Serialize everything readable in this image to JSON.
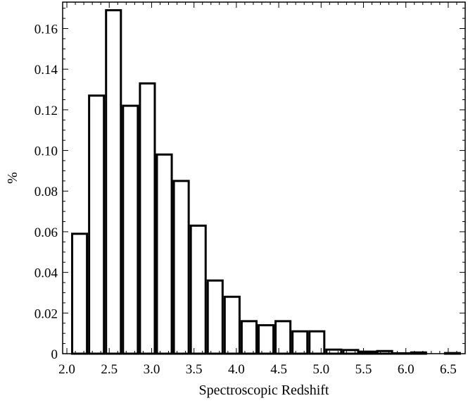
{
  "chart_data": {
    "type": "bar",
    "title": "",
    "xlabel": "Spectroscopic Redshift",
    "ylabel": "%",
    "xlim": [
      1.95,
      6.7
    ],
    "ylim": [
      0,
      0.173
    ],
    "x_ticks": [
      "2.0",
      "2.5",
      "3.0",
      "3.5",
      "4.0",
      "4.5",
      "5.0",
      "5.5",
      "6.0",
      "6.5"
    ],
    "y_ticks": [
      "0",
      "0.02",
      "0.04",
      "0.06",
      "0.08",
      "0.10",
      "0.12",
      "0.14",
      "0.16"
    ],
    "bin_width": 0.2,
    "grid": false,
    "legend": "none",
    "bar_fill": "#ffffff",
    "bar_stroke": "#000000",
    "bars": [
      {
        "x0": 2.05,
        "value": 0.059
      },
      {
        "x0": 2.25,
        "value": 0.127
      },
      {
        "x0": 2.45,
        "value": 0.169
      },
      {
        "x0": 2.65,
        "value": 0.122
      },
      {
        "x0": 2.85,
        "value": 0.133
      },
      {
        "x0": 3.05,
        "value": 0.098
      },
      {
        "x0": 3.25,
        "value": 0.085
      },
      {
        "x0": 3.45,
        "value": 0.063
      },
      {
        "x0": 3.65,
        "value": 0.036
      },
      {
        "x0": 3.85,
        "value": 0.028
      },
      {
        "x0": 4.05,
        "value": 0.016
      },
      {
        "x0": 4.25,
        "value": 0.014
      },
      {
        "x0": 4.45,
        "value": 0.016
      },
      {
        "x0": 4.65,
        "value": 0.011
      },
      {
        "x0": 4.85,
        "value": 0.011
      },
      {
        "x0": 5.05,
        "value": 0.002
      },
      {
        "x0": 5.25,
        "value": 0.0018
      },
      {
        "x0": 5.45,
        "value": 0.001
      },
      {
        "x0": 5.65,
        "value": 0.0013
      },
      {
        "x0": 5.85,
        "value": 0.0002
      },
      {
        "x0": 6.05,
        "value": 0.0006
      },
      {
        "x0": 6.25,
        "value": 0.0
      },
      {
        "x0": 6.45,
        "value": 0.0003
      }
    ]
  }
}
